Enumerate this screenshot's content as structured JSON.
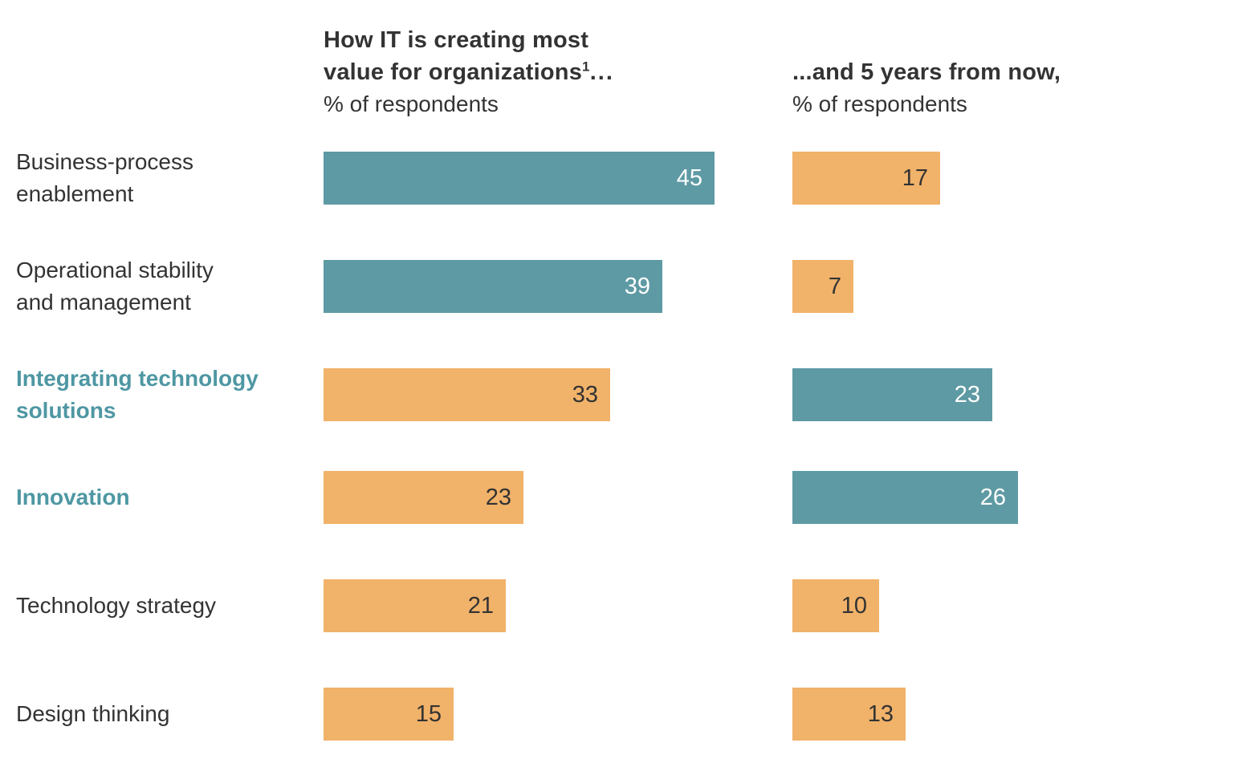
{
  "colors": {
    "teal": "#5E9AA4",
    "orange": "#F1B269",
    "label_text": "#333333",
    "highlight_text": "#4E97A3",
    "value_on_teal": "#FFFFFF",
    "value_on_orange": "#333333",
    "background": "#FFFFFF"
  },
  "headers": {
    "left": {
      "title_line1": "How IT is creating most",
      "title_line2": "value for organizations",
      "superscript": "1",
      "ellipsis": "...",
      "subtitle": "% of respondents"
    },
    "right": {
      "title": "...and 5 years from now,",
      "subtitle": "% of respondents"
    }
  },
  "chart_data": {
    "type": "bar",
    "orientation": "horizontal",
    "unit": "% of respondents",
    "title_left": "How IT is creating most value for organizations...",
    "title_right": "...and 5 years from now,",
    "categories": [
      "Business-process enablement",
      "Operational stability and management",
      "Integrating technology solutions",
      "Innovation",
      "Technology strategy",
      "Design thinking"
    ],
    "category_display_lines": [
      [
        "Business-process",
        "enablement"
      ],
      [
        "Operational stability",
        "and management"
      ],
      [
        "Integrating technology",
        "solutions"
      ],
      [
        "Innovation"
      ],
      [
        "Technology strategy"
      ],
      [
        "Design thinking"
      ]
    ],
    "highlighted_categories": [
      "Integrating technology solutions",
      "Innovation"
    ],
    "series": [
      {
        "name": "How IT is creating most value for organizations (% of respondents)",
        "values": [
          45,
          39,
          33,
          23,
          21,
          15
        ],
        "bar_colors": [
          "teal",
          "teal",
          "orange",
          "orange",
          "orange",
          "orange"
        ]
      },
      {
        "name": "...and 5 years from now (% of respondents)",
        "values": [
          17,
          7,
          23,
          26,
          10,
          13
        ],
        "bar_colors": [
          "orange",
          "orange",
          "teal",
          "teal",
          "orange",
          "orange"
        ]
      }
    ],
    "xlim": [
      0,
      45
    ],
    "value_labels": "inside-end",
    "grid": false,
    "legend": false
  }
}
